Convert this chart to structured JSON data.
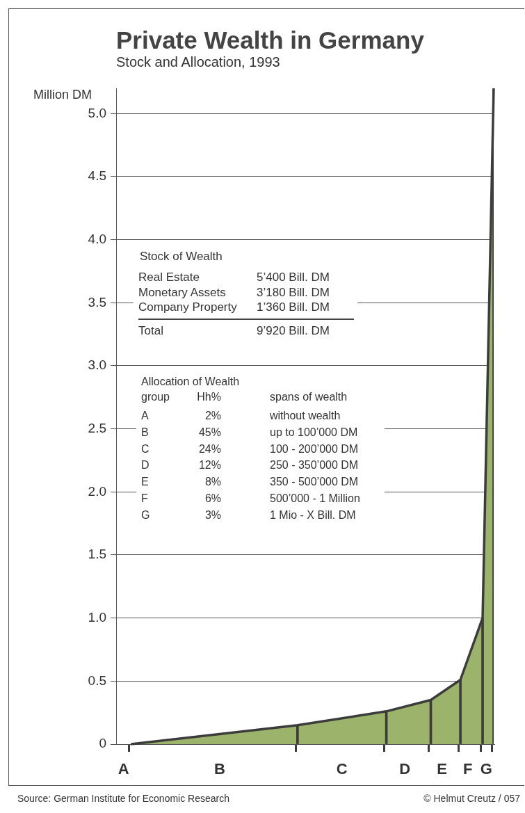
{
  "chart_data": {
    "type": "area",
    "title": "Private Wealth in Germany",
    "subtitle": "Stock and Allocation, 1993",
    "ylabel": "Million DM",
    "categories": [
      null,
      null,
      "A",
      null,
      null,
      null,
      null,
      null,
      null,
      null,
      null,
      null,
      null,
      null,
      null,
      null,
      null,
      null,
      null,
      null,
      null,
      null,
      null,
      null,
      null,
      null,
      null,
      null,
      "B",
      null,
      null,
      null,
      null,
      null,
      null,
      null,
      null,
      null,
      null,
      null,
      null,
      null,
      null,
      null,
      null,
      null,
      null,
      null,
      null,
      null,
      null,
      null,
      null,
      null,
      null,
      null,
      null,
      null,
      null,
      null,
      null,
      "C",
      null,
      null,
      null,
      null,
      null,
      null,
      null,
      null,
      null,
      null,
      null,
      null,
      null,
      null,
      null,
      null,
      "D",
      null,
      null,
      null,
      null,
      null,
      null,
      null,
      null,
      null,
      "E",
      null,
      null,
      null,
      null,
      null,
      null,
      "F",
      null,
      null,
      null,
      null,
      "G",
      null,
      null
    ],
    "series": [
      {
        "color": "#9bb36a",
        "values": [
          null,
          null,
          null,
          null,
          0,
          null,
          null,
          null,
          null,
          null,
          null,
          null,
          null,
          null,
          null,
          null,
          null,
          null,
          null,
          null,
          null,
          null,
          null,
          null,
          null,
          null,
          null,
          null,
          null,
          null,
          null,
          null,
          null,
          null,
          null,
          null,
          null,
          null,
          null,
          null,
          null,
          null,
          null,
          null,
          null,
          null,
          null,
          null,
          null,
          0.15,
          null,
          null,
          null,
          null,
          null,
          null,
          null,
          null,
          null,
          null,
          null,
          null,
          null,
          null,
          null,
          null,
          null,
          null,
          null,
          null,
          null,
          null,
          null,
          0.26,
          null,
          null,
          null,
          null,
          null,
          null,
          null,
          null,
          null,
          null,
          null,
          0.35,
          null,
          null,
          null,
          null,
          null,
          null,
          null,
          0.51,
          null,
          null,
          null,
          null,
          null,
          1.0,
          null,
          null,
          5.2
        ]
      },
      {
        "type": "bar",
        "color": "#3c3c3c",
        "values": [
          null,
          null,
          null,
          null,
          null,
          null,
          null,
          null,
          null,
          null,
          null,
          null,
          null,
          null,
          null,
          null,
          null,
          null,
          null,
          null,
          null,
          null,
          null,
          null,
          null,
          null,
          null,
          null,
          null,
          null,
          null,
          null,
          null,
          null,
          null,
          null,
          null,
          null,
          null,
          null,
          null,
          null,
          null,
          null,
          null,
          null,
          null,
          null,
          null,
          0.15,
          null,
          null,
          null,
          null,
          null,
          null,
          null,
          null,
          null,
          null,
          null,
          null,
          null,
          null,
          null,
          null,
          null,
          null,
          null,
          null,
          null,
          null,
          null,
          0.26,
          null,
          null,
          null,
          null,
          null,
          null,
          null,
          null,
          null,
          null,
          null,
          0.35,
          null,
          null,
          null,
          null,
          null,
          null,
          null,
          0.51,
          null,
          null,
          null,
          null,
          null,
          1.0,
          null,
          null,
          5.2
        ]
      }
    ],
    "ylim": [
      0,
      5.2
    ],
    "yticks": [
      0,
      0.5,
      {
        "value": 1,
        "label": "1.0"
      },
      1.5,
      {
        "value": 2,
        "label": "2.0"
      },
      2.5,
      {
        "value": 3,
        "label": "3.0"
      },
      3.5,
      {
        "value": 4,
        "label": "4.0"
      },
      4.5,
      {
        "value": 5,
        "label": "5.0"
      }
    ],
    "grid": "y",
    "marker": "none",
    "annotations": [
      "Stock of Wealth",
      "Real Estate",
      "5’400 Bill. DM",
      "Monetary Assets",
      "3’180 Bill. DM",
      "Company Property",
      "1’360 Bill. DM",
      "Total",
      "9’920 Bill. DM",
      "Allocation of Wealth",
      "group",
      "Hh%",
      "spans of wealth",
      "A",
      "2%",
      "without wealth",
      "B",
      "45%",
      "up to 100’000 DM",
      "C",
      "24%",
      "100 - 200’000 DM",
      "D",
      "12%",
      "250 - 350’000 DM",
      "E",
      "8%",
      "350 - 500’000 DM",
      "F",
      "6%",
      "500’000 - 1 Million",
      "G",
      "3%",
      "1 Mio - X Bill. DM",
      "Source: German Institute for Economic Research",
      "© Helmut Creutz / 057"
    ]
  }
}
